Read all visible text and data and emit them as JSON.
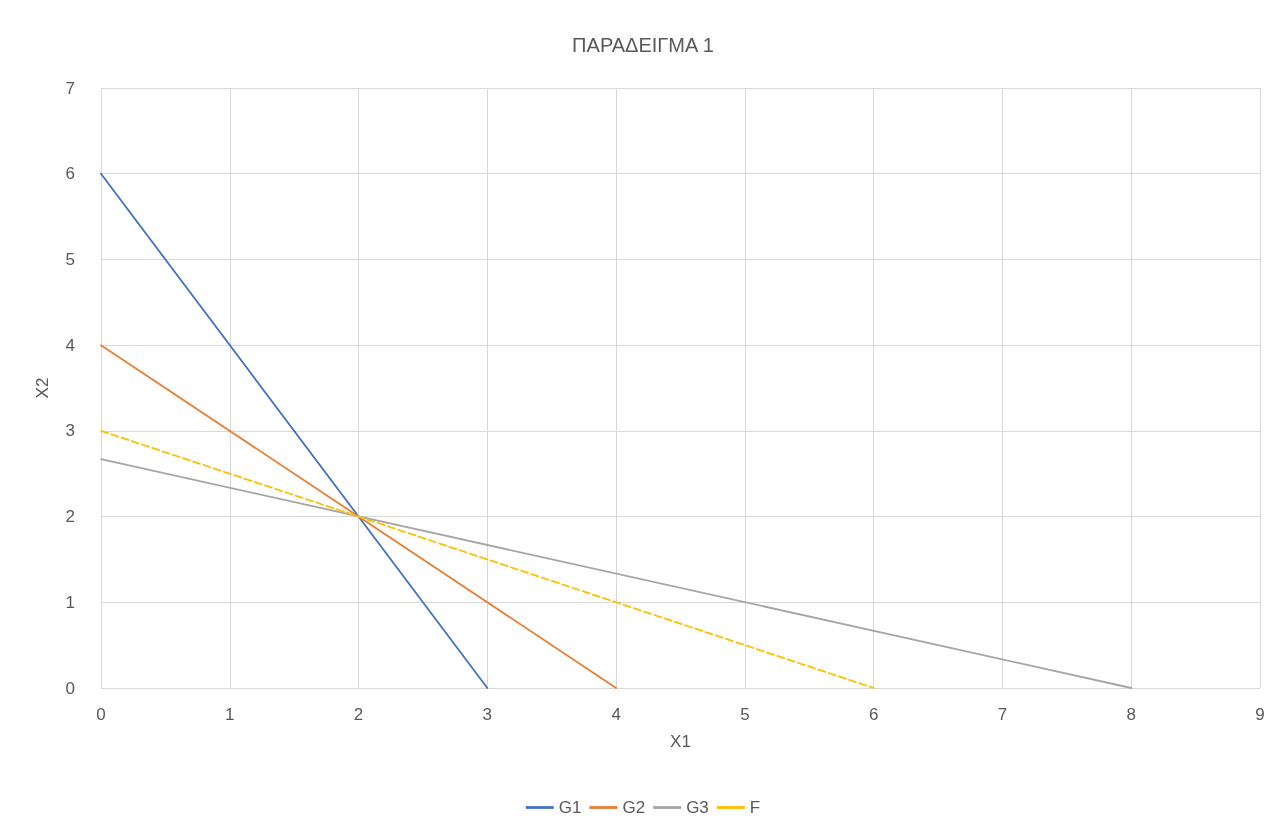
{
  "chart_data": {
    "type": "line",
    "title": "ΠΑΡΑΔΕΙΓΜΑ 1",
    "xlabel": "X1",
    "ylabel": "X2",
    "series": [
      {
        "name": "G1",
        "color": "#4472c4",
        "x": [
          0,
          3
        ],
        "values": [
          6,
          0
        ]
      },
      {
        "name": "G2",
        "color": "#ed7d31",
        "x": [
          0,
          4
        ],
        "values": [
          4,
          0
        ]
      },
      {
        "name": "G3",
        "color": "#a5a5a5",
        "x": [
          0,
          8
        ],
        "values": [
          2.67,
          0
        ]
      },
      {
        "name": "F",
        "color": "#ffc000",
        "x": [
          0,
          6
        ],
        "values": [
          3,
          0
        ],
        "line_style": "dashed"
      }
    ],
    "xlim": [
      0,
      9
    ],
    "xticks": [
      0,
      1,
      2,
      3,
      4,
      5,
      6,
      7,
      8,
      9
    ],
    "ylim": [
      0,
      7
    ],
    "yticks": [
      0,
      1,
      2,
      3,
      4,
      5,
      6,
      7
    ],
    "grid": true,
    "legend": "bottom",
    "marker": "none"
  }
}
